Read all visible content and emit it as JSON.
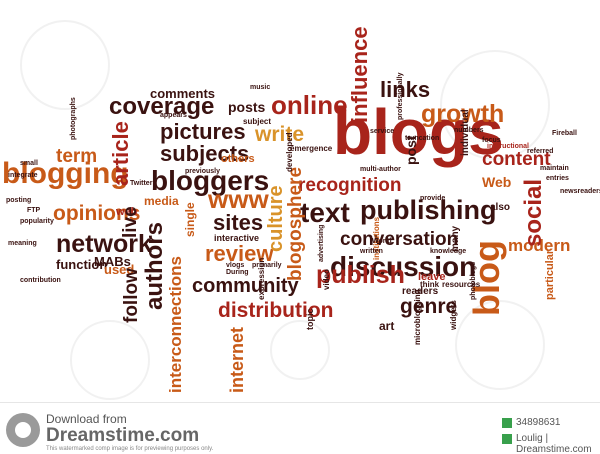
{
  "cloud": {
    "words": [
      {
        "t": "blogs",
        "c": "#a8241b"
      },
      {
        "t": "online",
        "c": "#a8241b"
      },
      {
        "t": "blogging",
        "c": "#c85a18"
      },
      {
        "t": "bloggers",
        "c": "#3a1210"
      },
      {
        "t": "publishing",
        "c": "#3a1210"
      },
      {
        "t": "discussion",
        "c": "#3a1210"
      },
      {
        "t": "text",
        "c": "#3a1210"
      },
      {
        "t": "growth",
        "c": "#c85a18"
      },
      {
        "t": "recognition",
        "c": "#a8241b"
      },
      {
        "t": "conversation",
        "c": "#3a1210"
      },
      {
        "t": "publish",
        "c": "#a8241b"
      },
      {
        "t": "community",
        "c": "#3a1210"
      },
      {
        "t": "distribution",
        "c": "#a8241b"
      },
      {
        "t": "network",
        "c": "#3a1210"
      },
      {
        "t": "opinions",
        "c": "#c85a18"
      },
      {
        "t": "coverage",
        "c": "#3a1210"
      },
      {
        "t": "pictures",
        "c": "#3a1210"
      },
      {
        "t": "subjects",
        "c": "#3a1210"
      },
      {
        "t": "links",
        "c": "#3a1210"
      },
      {
        "t": "content",
        "c": "#a8241b"
      },
      {
        "t": "genre",
        "c": "#3a1210"
      },
      {
        "t": "review",
        "c": "#c85a18"
      },
      {
        "t": "sites",
        "c": "#3a1210"
      },
      {
        "t": "write",
        "c": "#d9932a"
      },
      {
        "t": "www",
        "c": "#c85a18"
      },
      {
        "t": "term",
        "c": "#c85a18"
      },
      {
        "t": "comments",
        "c": "#3a1210"
      },
      {
        "t": "posts",
        "c": "#3a1210"
      },
      {
        "t": "MABs",
        "c": "#3a1210"
      },
      {
        "t": "function",
        "c": "#3a1210"
      },
      {
        "t": "used",
        "c": "#c85a18"
      },
      {
        "t": "web",
        "c": "#a8241b"
      },
      {
        "t": "media",
        "c": "#c85a18"
      },
      {
        "t": "Web",
        "c": "#c85a18"
      },
      {
        "t": "modern",
        "c": "#c85a18"
      },
      {
        "t": "also",
        "c": "#3a1210"
      },
      {
        "t": "art",
        "c": "#3a1210"
      },
      {
        "t": "readers",
        "c": "#3a1210"
      },
      {
        "t": "leave",
        "c": "#a8241b"
      },
      {
        "t": "interactive",
        "c": "#3a1210"
      },
      {
        "t": "influence",
        "c": "#a8241b"
      },
      {
        "t": "article",
        "c": "#a8241b"
      },
      {
        "t": "live",
        "c": "#3a1210"
      },
      {
        "t": "authors",
        "c": "#3a1210"
      },
      {
        "t": "follow",
        "c": "#3a1210"
      },
      {
        "t": "interconnections",
        "c": "#c85a18"
      },
      {
        "t": "internet",
        "c": "#c85a18"
      },
      {
        "t": "culture",
        "c": "#d9932a"
      },
      {
        "t": "blogosphere",
        "c": "#c85a18"
      },
      {
        "t": "blog",
        "c": "#c85a18"
      },
      {
        "t": "social",
        "c": "#a8241b"
      },
      {
        "t": "post",
        "c": "#3a1210"
      },
      {
        "t": "single",
        "c": "#c85a18"
      },
      {
        "t": "particular",
        "c": "#c85a18"
      },
      {
        "t": "individual",
        "c": "#3a1210"
      },
      {
        "t": "many",
        "c": "#3a1210"
      },
      {
        "t": "topic",
        "c": "#3a1210"
      },
      {
        "t": "developed",
        "c": "#3a1210"
      },
      {
        "t": "video",
        "c": "#3a1210"
      },
      {
        "t": "advertising",
        "c": "#3a1210"
      },
      {
        "t": "institutions",
        "c": "#c85a18"
      },
      {
        "t": "microblogging",
        "c": "#3a1210"
      },
      {
        "t": "widgets",
        "c": "#3a1210"
      },
      {
        "t": "photographs",
        "c": "#3a1210"
      },
      {
        "t": "photoblogs",
        "c": "#3a1210"
      },
      {
        "t": "expression",
        "c": "#3a1210"
      },
      {
        "t": "professionally",
        "c": "#3a1210"
      },
      {
        "t": "emergence",
        "c": "#3a1210"
      },
      {
        "t": "others",
        "c": "#c85a18"
      },
      {
        "t": "subject",
        "c": "#3a1210"
      },
      {
        "t": "service",
        "c": "#3a1210"
      },
      {
        "t": "music",
        "c": "#3a1210"
      },
      {
        "t": "appears",
        "c": "#3a1210"
      },
      {
        "t": "contribution",
        "c": "#3a1210"
      },
      {
        "t": "written",
        "c": "#3a1210"
      },
      {
        "t": "previously",
        "c": "#3a1210"
      },
      {
        "t": "multi-author",
        "c": "#3a1210"
      },
      {
        "t": "think",
        "c": "#3a1210"
      },
      {
        "t": "resources",
        "c": "#3a1210"
      },
      {
        "t": "popularity",
        "c": "#3a1210"
      },
      {
        "t": "numbers",
        "c": "#3a1210"
      },
      {
        "t": "focus",
        "c": "#3a1210"
      },
      {
        "t": "instructional",
        "c": "#a8241b"
      },
      {
        "t": "maintain",
        "c": "#3a1210"
      },
      {
        "t": "posting",
        "c": "#3a1210"
      },
      {
        "t": "meaning",
        "c": "#3a1210"
      },
      {
        "t": "FTP",
        "c": "#3a1210"
      },
      {
        "t": "Twitter",
        "c": "#3a1210"
      },
      {
        "t": "World",
        "c": "#3a1210"
      },
      {
        "t": "knowledge",
        "c": "#3a1210"
      },
      {
        "t": "newsreaders",
        "c": "#3a1210"
      },
      {
        "t": "During",
        "c": "#3a1210"
      },
      {
        "t": "vlogs",
        "c": "#3a1210"
      },
      {
        "t": "primarily",
        "c": "#3a1210"
      },
      {
        "t": "entries",
        "c": "#3a1210"
      },
      {
        "t": "Fireball",
        "c": "#3a1210"
      },
      {
        "t": "small",
        "c": "#3a1210"
      },
      {
        "t": "integrate",
        "c": "#3a1210"
      },
      {
        "t": "truncation",
        "c": "#3a1210"
      },
      {
        "t": "provide",
        "c": "#3a1210"
      },
      {
        "t": "referred",
        "c": "#3a1210"
      }
    ]
  },
  "footer": {
    "download_label": "Download from",
    "brand": "Dreamstime.com",
    "disclaimer": "This watermarked comp image is for previewing purposes only.",
    "image_id": "34898631",
    "credit": "Loulig | Dreamstime.com"
  }
}
